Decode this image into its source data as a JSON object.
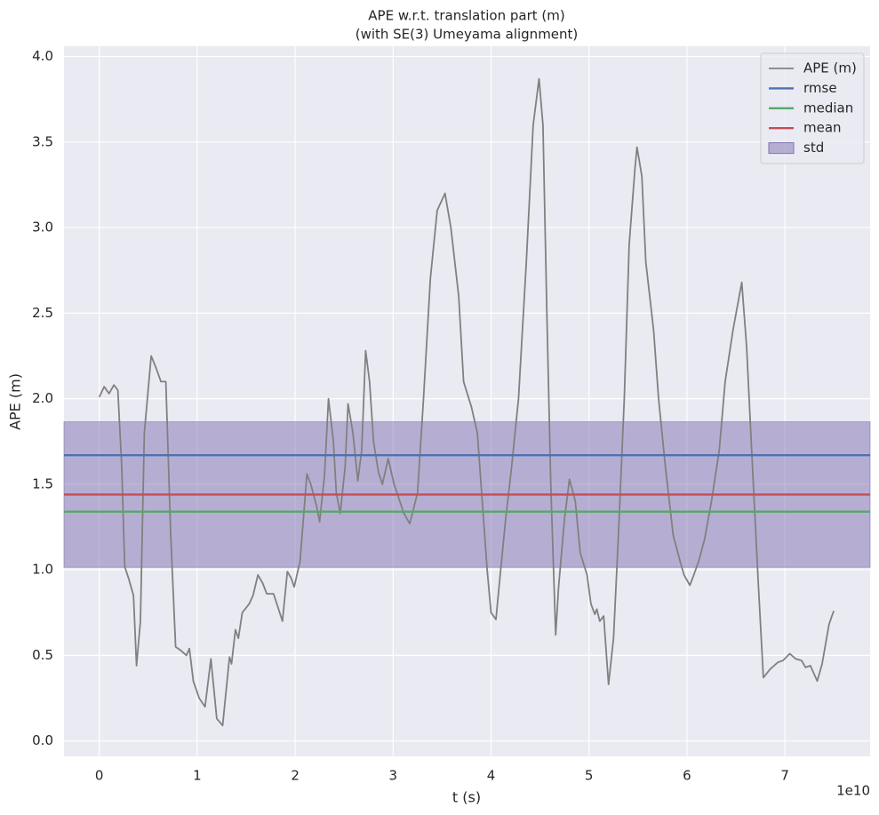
{
  "chart_data": {
    "type": "line",
    "title": "APE w.r.t. translation part (m)",
    "subtitle": "(with SE(3) Umeyama alignment)",
    "x_label": "t (s)",
    "y_label": "APE (m)",
    "x_offset_text": "1e10",
    "xlim": [
      -0.36,
      7.87
    ],
    "ylim": [
      -0.09,
      4.06
    ],
    "xticks": [
      0,
      1,
      2,
      3,
      4,
      5,
      6,
      7
    ],
    "yticks": [
      {
        "value": 0,
        "label": "0.0"
      },
      0.5,
      {
        "value": 1,
        "label": "1.0"
      },
      1.5,
      {
        "value": 2,
        "label": "2.0"
      },
      2.5,
      {
        "value": 3,
        "label": "3.0"
      },
      3.5,
      {
        "value": 4,
        "label": "4.0"
      }
    ],
    "grid": true,
    "legend": "upper right",
    "x": [
      0.0,
      0.05,
      0.1,
      0.15,
      0.19,
      0.23,
      0.26,
      0.3,
      0.35,
      0.38,
      0.42,
      0.46,
      0.53,
      0.58,
      0.63,
      0.68,
      0.73,
      0.78,
      0.83,
      0.89,
      0.92,
      0.96,
      1.02,
      1.08,
      1.14,
      1.2,
      1.26,
      1.33,
      1.35,
      1.39,
      1.42,
      1.46,
      1.53,
      1.57,
      1.62,
      1.67,
      1.71,
      1.78,
      1.87,
      1.92,
      1.96,
      1.99,
      2.05,
      2.12,
      2.16,
      2.22,
      2.25,
      2.3,
      2.34,
      2.39,
      2.42,
      2.46,
      2.51,
      2.54,
      2.59,
      2.64,
      2.68,
      2.72,
      2.76,
      2.8,
      2.85,
      2.89,
      2.95,
      3.01,
      3.04,
      3.11,
      3.17,
      3.25,
      3.31,
      3.38,
      3.45,
      3.53,
      3.59,
      3.67,
      3.72,
      3.8,
      3.86,
      3.91,
      3.96,
      4.0,
      4.05,
      4.09,
      4.15,
      4.21,
      4.28,
      4.36,
      4.43,
      4.49,
      4.53,
      4.57,
      4.61,
      4.66,
      4.69,
      4.75,
      4.8,
      4.86,
      4.91,
      4.98,
      5.02,
      5.06,
      5.08,
      5.11,
      5.15,
      5.2,
      5.25,
      5.3,
      5.36,
      5.41,
      5.47,
      5.49,
      5.54,
      5.58,
      5.66,
      5.71,
      5.78,
      5.86,
      5.93,
      5.97,
      6.03,
      6.07,
      6.12,
      6.18,
      6.25,
      6.33,
      6.39,
      6.47,
      6.56,
      6.61,
      6.66,
      6.73,
      6.78,
      6.85,
      6.93,
      6.98,
      7.05,
      7.11,
      7.17,
      7.21,
      7.26,
      7.33,
      7.38,
      7.45,
      7.48,
      7.5
    ],
    "series": [
      {
        "name": "APE (m)",
        "color": "#808080",
        "values": [
          2.01,
          2.07,
          2.03,
          2.08,
          2.05,
          1.6,
          1.02,
          0.95,
          0.85,
          0.44,
          0.7,
          1.8,
          2.25,
          2.18,
          2.1,
          2.1,
          1.2,
          0.55,
          0.53,
          0.5,
          0.54,
          0.35,
          0.25,
          0.2,
          0.48,
          0.13,
          0.09,
          0.49,
          0.45,
          0.65,
          0.6,
          0.75,
          0.8,
          0.85,
          0.97,
          0.92,
          0.86,
          0.86,
          0.7,
          0.99,
          0.95,
          0.9,
          1.05,
          1.56,
          1.5,
          1.37,
          1.28,
          1.55,
          2.0,
          1.75,
          1.45,
          1.33,
          1.6,
          1.97,
          1.8,
          1.52,
          1.7,
          2.28,
          2.1,
          1.75,
          1.57,
          1.5,
          1.65,
          1.5,
          1.45,
          1.33,
          1.27,
          1.45,
          2.0,
          2.7,
          3.1,
          3.2,
          3.0,
          2.6,
          2.1,
          1.95,
          1.8,
          1.4,
          1.0,
          0.75,
          0.71,
          0.95,
          1.3,
          1.6,
          2.0,
          2.8,
          3.6,
          3.87,
          3.6,
          2.5,
          1.5,
          0.62,
          0.9,
          1.3,
          1.53,
          1.4,
          1.1,
          0.97,
          0.8,
          0.74,
          0.77,
          0.7,
          0.73,
          0.33,
          0.6,
          1.2,
          2.0,
          2.9,
          3.35,
          3.47,
          3.3,
          2.8,
          2.4,
          2.0,
          1.6,
          1.2,
          1.05,
          0.97,
          0.91,
          0.97,
          1.05,
          1.18,
          1.4,
          1.7,
          2.1,
          2.4,
          2.68,
          2.3,
          1.7,
          0.9,
          0.37,
          0.42,
          0.46,
          0.47,
          0.51,
          0.48,
          0.47,
          0.43,
          0.44,
          0.35,
          0.45,
          0.68,
          0.73,
          0.76
        ]
      }
    ],
    "references": [
      {
        "name": "rmse",
        "color": "#4c72b0",
        "value": 1.67
      },
      {
        "name": "median",
        "color": "#55a868",
        "value": 1.34
      },
      {
        "name": "mean",
        "color": "#c44e52",
        "value": 1.44
      }
    ],
    "band": {
      "name": "std",
      "color": "#8172b2",
      "value": 0.425,
      "about": "mean"
    }
  }
}
